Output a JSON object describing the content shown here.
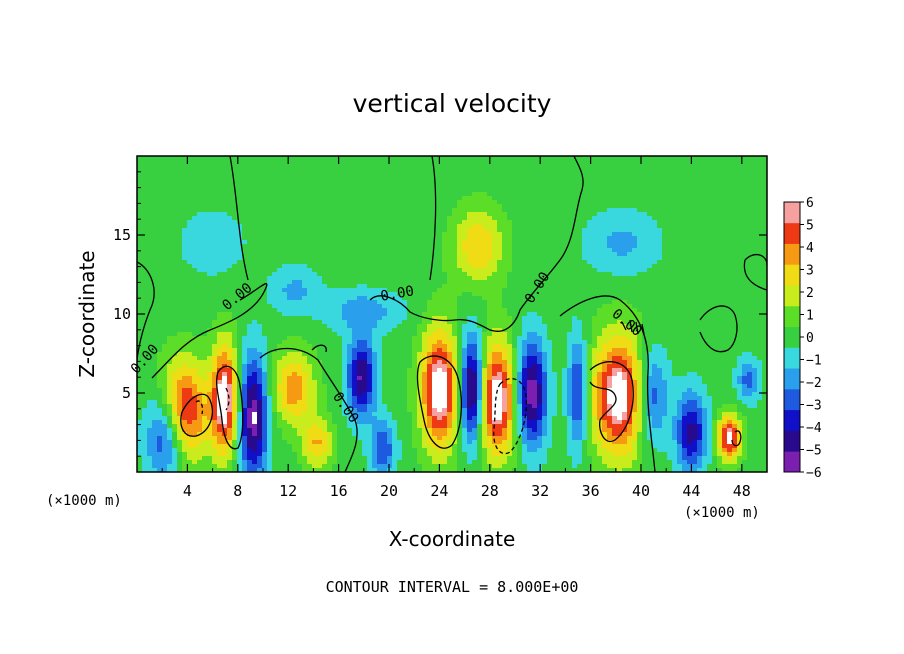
{
  "chart_data": {
    "type": "heatmap",
    "title": "vertical velocity",
    "xlabel": "X-coordinate",
    "ylabel": "Z-coordinate",
    "x_unit_left": "(×1000 m)",
    "x_unit_right": "(×1000 m)",
    "xlim": [
      0,
      50
    ],
    "ylim": [
      0,
      20
    ],
    "x_ticks": [
      4,
      8,
      12,
      16,
      20,
      24,
      28,
      32,
      36,
      40,
      44,
      48
    ],
    "y_ticks": [
      5,
      10,
      15
    ],
    "contour_note": "CONTOUR INTERVAL = 8.000E+00",
    "contour_labels": [
      "0.00",
      "0.00",
      "0.00",
      "0.00",
      "0.00",
      "0.00"
    ],
    "colorbar": {
      "range": [
        -6,
        6
      ],
      "ticks": [
        "6",
        "5",
        "4",
        "3",
        "2",
        "1",
        "0",
        "−1",
        "−2",
        "−3",
        "−4",
        "−5",
        "−6"
      ],
      "colors": [
        "#7a1fb0",
        "#2a0a8c",
        "#1010c8",
        "#1e5ae0",
        "#2aa0ec",
        "#38d8de",
        "#38d040",
        "#5cde28",
        "#c8ec1c",
        "#f0dc14",
        "#f59a12",
        "#ee3a14",
        "#f6a0a0"
      ]
    },
    "features": [
      {
        "x": 3.6,
        "z": 3.7,
        "w": 1.0,
        "sx": 1.9,
        "sz": 3.2
      },
      {
        "x": 7.0,
        "z": 4.6,
        "w": 1.0,
        "sx": 1.1,
        "sz": 3.5
      },
      {
        "x": 2.4,
        "z": 2.4,
        "w": -0.8,
        "sx": 1.6,
        "sz": 2.8
      },
      {
        "x": 9.2,
        "z": 3.5,
        "w": -0.9,
        "sx": 1.2,
        "sz": 3.8
      },
      {
        "x": 12.4,
        "z": 5.3,
        "w": 0.6,
        "sx": 1.7,
        "sz": 2.3
      },
      {
        "x": 14.3,
        "z": 1.8,
        "w": 0.5,
        "sx": 1.2,
        "sz": 1.6
      },
      {
        "x": 17.8,
        "z": 6.0,
        "w": -0.8,
        "sx": 1.1,
        "sz": 2.5
      },
      {
        "x": 19.5,
        "z": 1.5,
        "w": -0.5,
        "sx": 1.0,
        "sz": 1.8
      },
      {
        "x": 24.0,
        "z": 5.2,
        "w": 1.0,
        "sx": 1.5,
        "sz": 3.8
      },
      {
        "x": 28.6,
        "z": 4.6,
        "w": 1.0,
        "sx": 1.5,
        "sz": 3.6
      },
      {
        "x": 26.6,
        "z": 5.2,
        "w": -1.0,
        "sx": 0.9,
        "sz": 3.3
      },
      {
        "x": 31.3,
        "z": 5.0,
        "w": -0.9,
        "sx": 1.2,
        "sz": 3.3
      },
      {
        "x": 27.1,
        "z": 14.3,
        "w": 0.5,
        "sx": 2.0,
        "sz": 2.4
      },
      {
        "x": 38.3,
        "z": 4.8,
        "w": 1.0,
        "sx": 2.2,
        "sz": 3.8
      },
      {
        "x": 35.0,
        "z": 5.0,
        "w": -0.6,
        "sx": 0.8,
        "sz": 3.5
      },
      {
        "x": 40.8,
        "z": 4.8,
        "w": -0.6,
        "sx": 1.3,
        "sz": 3.0
      },
      {
        "x": 44.0,
        "z": 2.5,
        "w": -0.7,
        "sx": 1.2,
        "sz": 2.5
      },
      {
        "x": 47.0,
        "z": 2.2,
        "w": 0.9,
        "sx": 1.0,
        "sz": 1.4
      },
      {
        "x": 48.5,
        "z": 5.8,
        "w": -0.4,
        "sx": 0.9,
        "sz": 1.4
      },
      {
        "x": 18.0,
        "z": 10.2,
        "w": -0.3,
        "sx": 3.0,
        "sz": 1.3
      },
      {
        "x": 12.5,
        "z": 11.5,
        "w": -0.25,
        "sx": 2.0,
        "sz": 1.5
      },
      {
        "x": 38.5,
        "z": 14.5,
        "w": -0.25,
        "sx": 3.0,
        "sz": 2.0
      },
      {
        "x": 6.0,
        "z": 14.5,
        "w": -0.2,
        "sx": 2.5,
        "sz": 2.0
      }
    ]
  }
}
